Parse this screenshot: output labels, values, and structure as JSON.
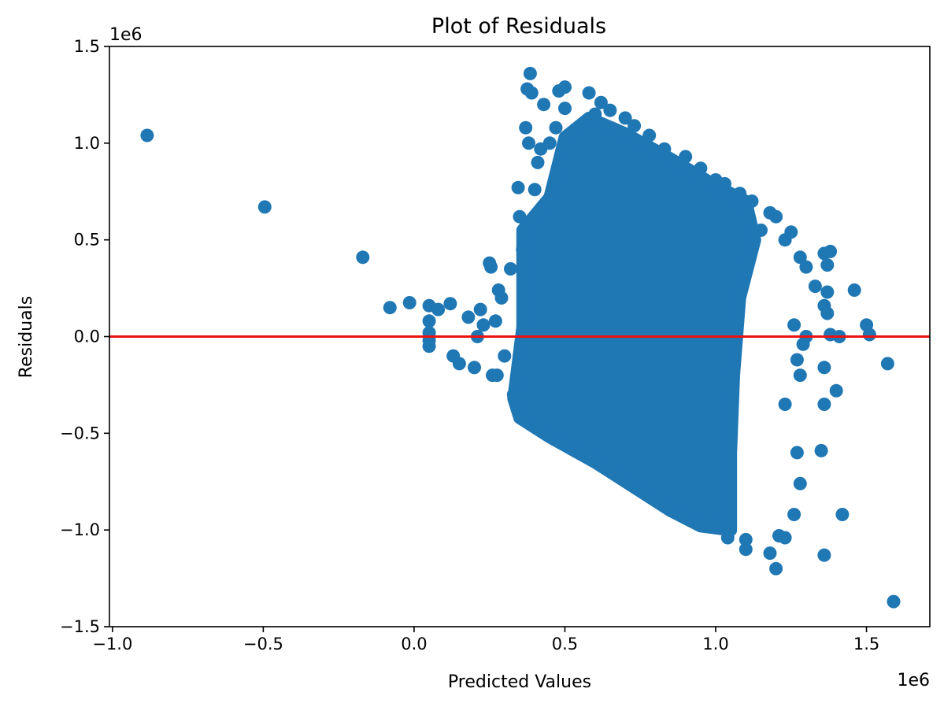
{
  "chart_data": {
    "type": "scatter",
    "title": "Plot of Residuals",
    "xlabel": "Predicted Values",
    "ylabel": "Residuals",
    "x_offset_text": "1e6",
    "y_offset_text": "1e6",
    "xlim": [
      -1.01,
      1.71
    ],
    "ylim": [
      -1.5,
      1.5
    ],
    "x_ticks": [
      -1.0,
      -0.5,
      0.0,
      0.5,
      1.0,
      1.5
    ],
    "x_tick_labels": [
      "−1.0",
      "−0.5",
      "0.0",
      "0.5",
      "1.0",
      "1.5"
    ],
    "y_ticks": [
      -1.5,
      -1.0,
      -0.5,
      0.0,
      0.5,
      1.0,
      1.5
    ],
    "y_tick_labels": [
      "−1.5",
      "−1.0",
      "−0.5",
      "0.0",
      "0.5",
      "1.0",
      "1.5"
    ],
    "grid": false,
    "reference_line": {
      "y": 0,
      "color": "#ee1111"
    },
    "point_color": "#1f77b4",
    "points": [
      {
        "x": -0.885,
        "y": 1.04
      },
      {
        "x": -0.495,
        "y": 0.67
      },
      {
        "x": -0.17,
        "y": 0.41
      },
      {
        "x": -0.08,
        "y": 0.15
      },
      {
        "x": -0.015,
        "y": 0.175
      },
      {
        "x": 0.05,
        "y": 0.16
      },
      {
        "x": 0.05,
        "y": 0.08
      },
      {
        "x": 0.05,
        "y": 0.02
      },
      {
        "x": 0.05,
        "y": -0.02
      },
      {
        "x": 0.05,
        "y": -0.05
      },
      {
        "x": 0.08,
        "y": 0.14
      },
      {
        "x": 0.12,
        "y": 0.17
      },
      {
        "x": 0.13,
        "y": -0.1
      },
      {
        "x": 0.15,
        "y": -0.14
      },
      {
        "x": 0.18,
        "y": 0.1
      },
      {
        "x": 0.2,
        "y": -0.16
      },
      {
        "x": 0.21,
        "y": 0.0
      },
      {
        "x": 0.22,
        "y": 0.14
      },
      {
        "x": 0.23,
        "y": 0.06
      },
      {
        "x": 0.25,
        "y": 0.38
      },
      {
        "x": 0.255,
        "y": 0.36
      },
      {
        "x": 0.26,
        "y": -0.2
      },
      {
        "x": 0.27,
        "y": 0.08
      },
      {
        "x": 0.275,
        "y": -0.2
      },
      {
        "x": 0.28,
        "y": 0.24
      },
      {
        "x": 0.29,
        "y": 0.2
      },
      {
        "x": 0.3,
        "y": -0.1
      },
      {
        "x": 0.32,
        "y": 0.35
      },
      {
        "x": 0.33,
        "y": -0.3
      },
      {
        "x": 0.345,
        "y": 0.77
      },
      {
        "x": 0.35,
        "y": 0.62
      },
      {
        "x": 0.36,
        "y": 0.45
      },
      {
        "x": 0.37,
        "y": 1.08
      },
      {
        "x": 0.375,
        "y": 1.28
      },
      {
        "x": 0.38,
        "y": 1.0
      },
      {
        "x": 0.385,
        "y": 1.36
      },
      {
        "x": 0.39,
        "y": 1.26
      },
      {
        "x": 0.4,
        "y": 0.76
      },
      {
        "x": 0.41,
        "y": 0.9
      },
      {
        "x": 0.42,
        "y": 0.97
      },
      {
        "x": 0.43,
        "y": 1.2
      },
      {
        "x": 0.45,
        "y": 1.0
      },
      {
        "x": 0.47,
        "y": 1.08
      },
      {
        "x": 0.48,
        "y": 1.27
      },
      {
        "x": 0.5,
        "y": 1.29
      },
      {
        "x": 0.5,
        "y": 1.18
      },
      {
        "x": 0.58,
        "y": 1.26
      },
      {
        "x": 0.6,
        "y": 1.15
      },
      {
        "x": 0.62,
        "y": 1.21
      },
      {
        "x": 0.65,
        "y": 1.17
      },
      {
        "x": 0.7,
        "y": 1.13
      },
      {
        "x": 0.73,
        "y": 1.09
      },
      {
        "x": 0.78,
        "y": 1.04
      },
      {
        "x": 0.83,
        "y": 0.97
      },
      {
        "x": 0.9,
        "y": 0.93
      },
      {
        "x": 0.95,
        "y": 0.87
      },
      {
        "x": 1.0,
        "y": 0.81
      },
      {
        "x": 1.03,
        "y": 0.79
      },
      {
        "x": 1.08,
        "y": 0.74
      },
      {
        "x": 1.12,
        "y": 0.7
      },
      {
        "x": 1.18,
        "y": 0.64
      },
      {
        "x": 1.2,
        "y": 0.62
      },
      {
        "x": 1.15,
        "y": 0.55
      },
      {
        "x": 1.23,
        "y": 0.5
      },
      {
        "x": 1.25,
        "y": 0.54
      },
      {
        "x": 1.28,
        "y": 0.41
      },
      {
        "x": 1.3,
        "y": 0.36
      },
      {
        "x": 1.33,
        "y": 0.26
      },
      {
        "x": 1.36,
        "y": 0.43
      },
      {
        "x": 1.38,
        "y": 0.44
      },
      {
        "x": 1.37,
        "y": 0.37
      },
      {
        "x": 1.37,
        "y": 0.23
      },
      {
        "x": 1.36,
        "y": 0.16
      },
      {
        "x": 1.37,
        "y": 0.12
      },
      {
        "x": 1.46,
        "y": 0.24
      },
      {
        "x": 1.38,
        "y": 0.01
      },
      {
        "x": 1.41,
        "y": 0.0
      },
      {
        "x": 1.5,
        "y": 0.06
      },
      {
        "x": 1.51,
        "y": 0.01
      },
      {
        "x": 1.57,
        "y": -0.14
      },
      {
        "x": 1.36,
        "y": -0.16
      },
      {
        "x": 1.4,
        "y": -0.28
      },
      {
        "x": 1.36,
        "y": -0.35
      },
      {
        "x": 1.35,
        "y": -0.59
      },
      {
        "x": 1.42,
        "y": -0.92
      },
      {
        "x": 1.36,
        "y": -1.13
      },
      {
        "x": 1.59,
        "y": -1.37
      },
      {
        "x": 1.3,
        "y": 0.0
      },
      {
        "x": 1.29,
        "y": -0.04
      },
      {
        "x": 1.28,
        "y": -0.2
      },
      {
        "x": 1.27,
        "y": -0.12
      },
      {
        "x": 1.27,
        "y": -0.6
      },
      {
        "x": 1.28,
        "y": -0.76
      },
      {
        "x": 1.26,
        "y": -0.92
      },
      {
        "x": 1.26,
        "y": 0.06
      },
      {
        "x": 1.23,
        "y": -0.35
      },
      {
        "x": 1.23,
        "y": -1.04
      },
      {
        "x": 1.21,
        "y": -1.03
      },
      {
        "x": 1.2,
        "y": -1.2
      },
      {
        "x": 1.18,
        "y": -1.12
      },
      {
        "x": 1.1,
        "y": -1.1
      },
      {
        "x": 1.1,
        "y": -1.05
      },
      {
        "x": 1.04,
        "y": -1.04
      },
      {
        "x": 1.02,
        "y": -0.98
      },
      {
        "x": 1.0,
        "y": -0.95
      }
    ],
    "dense_region": [
      [
        0.33,
        -0.32
      ],
      [
        0.36,
        0.05
      ],
      [
        0.36,
        0.55
      ],
      [
        0.45,
        0.72
      ],
      [
        0.5,
        1.03
      ],
      [
        0.58,
        1.13
      ],
      [
        0.7,
        1.05
      ],
      [
        0.85,
        0.92
      ],
      [
        1.0,
        0.78
      ],
      [
        1.1,
        0.7
      ],
      [
        1.13,
        0.5
      ],
      [
        1.08,
        0.2
      ],
      [
        1.06,
        -0.2
      ],
      [
        1.05,
        -0.6
      ],
      [
        1.05,
        -1.0
      ],
      [
        0.95,
        -0.98
      ],
      [
        0.85,
        -0.9
      ],
      [
        0.75,
        -0.8
      ],
      [
        0.6,
        -0.65
      ],
      [
        0.45,
        -0.52
      ],
      [
        0.35,
        -0.42
      ]
    ]
  }
}
